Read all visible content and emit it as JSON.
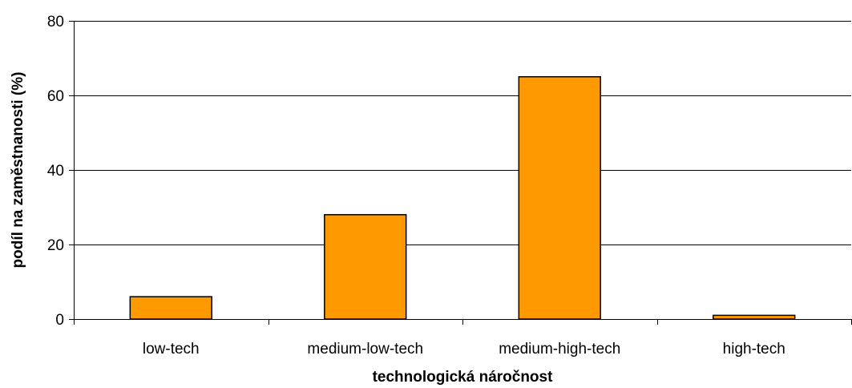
{
  "chart_data": {
    "type": "bar",
    "title": "",
    "xlabel": "technologická náročnost",
    "ylabel": "podíl na zaměstnanosti (%)",
    "categories": [
      "low-tech",
      "medium-low-tech",
      "medium-high-tech",
      "high-tech"
    ],
    "values": [
      6,
      28,
      65,
      1
    ],
    "ylim": [
      0,
      80
    ],
    "yticks": [
      0,
      20,
      40,
      60,
      80
    ],
    "grid": true,
    "legend": "none",
    "colors": {
      "bar_fill": "#FF9900",
      "bar_stroke": "#000000",
      "grid": "#000000",
      "axis": "#000000"
    }
  }
}
